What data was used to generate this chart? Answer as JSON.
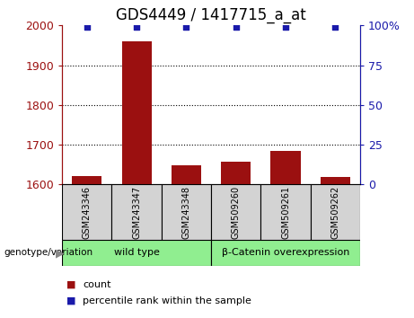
{
  "title": "GDS4449 / 1417715_a_at",
  "samples": [
    "GSM243346",
    "GSM243347",
    "GSM243348",
    "GSM509260",
    "GSM509261",
    "GSM509262"
  ],
  "count_values": [
    1622,
    1960,
    1648,
    1658,
    1685,
    1618
  ],
  "percentile_values": [
    99,
    99,
    99,
    99,
    99,
    99
  ],
  "ylim_left": [
    1600,
    2000
  ],
  "ylim_right": [
    0,
    100
  ],
  "yticks_left": [
    1600,
    1700,
    1800,
    1900,
    2000
  ],
  "yticks_right": [
    0,
    25,
    50,
    75,
    100
  ],
  "ytick_labels_right": [
    "0",
    "25",
    "50",
    "75",
    "100%"
  ],
  "grid_values": [
    1700,
    1800,
    1900
  ],
  "bar_color": "#9b1010",
  "dot_color": "#1a1aaa",
  "group1_label": "wild type",
  "group2_label": "β-Catenin overexpression",
  "group1_indices": [
    0,
    1,
    2
  ],
  "group2_indices": [
    3,
    4,
    5
  ],
  "group_bg_color": "#90ee90",
  "sample_bg_color": "#d3d3d3",
  "genotype_label": "genotype/variation",
  "legend_count_label": "count",
  "legend_percentile_label": "percentile rank within the sample",
  "title_fontsize": 12,
  "tick_fontsize": 9,
  "bar_width": 0.6
}
